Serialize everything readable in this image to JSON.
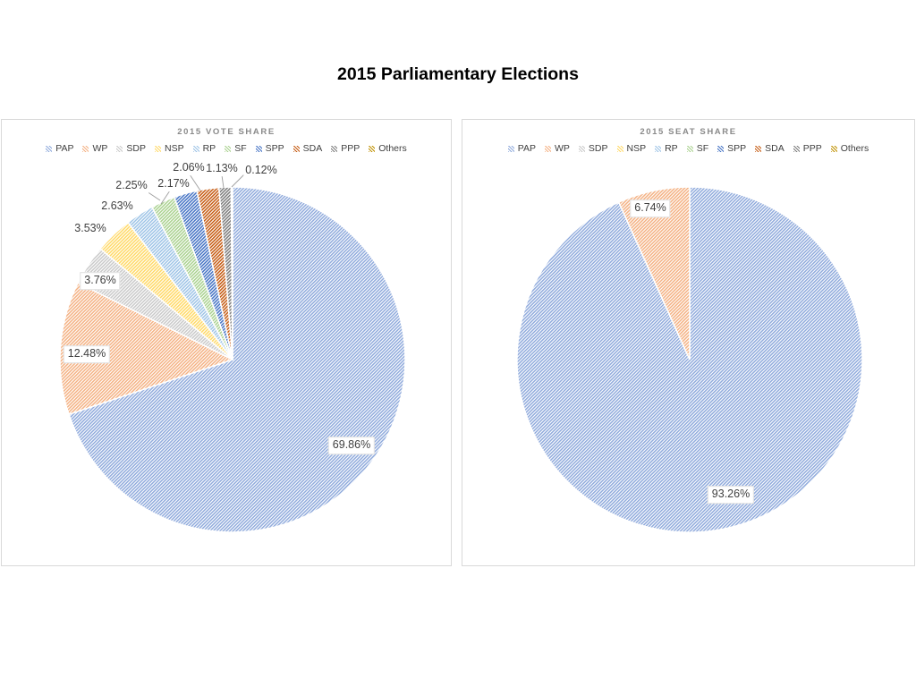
{
  "page": {
    "title": "2015 Parliamentary Elections"
  },
  "legend": {
    "position": "top",
    "items": [
      {
        "label": "PAP",
        "color": "#8FAADC"
      },
      {
        "label": "WP",
        "color": "#F4B183"
      },
      {
        "label": "SDP",
        "color": "#C9C9C9"
      },
      {
        "label": "NSP",
        "color": "#FFD966"
      },
      {
        "label": "RP",
        "color": "#9DC3E6"
      },
      {
        "label": "SF",
        "color": "#A9D18E"
      },
      {
        "label": "SPP",
        "color": "#4472C4"
      },
      {
        "label": "SDA",
        "color": "#C55A11"
      },
      {
        "label": "PPP",
        "color": "#7B7B7B"
      },
      {
        "label": "Others",
        "color": "#BF9000"
      }
    ]
  },
  "chart_data": [
    {
      "type": "pie",
      "title": "2015 VOTE SHARE",
      "categories": [
        "PAP",
        "WP",
        "SDP",
        "NSP",
        "RP",
        "SF",
        "SPP",
        "SDA",
        "PPP",
        "Others"
      ],
      "values": [
        69.86,
        12.48,
        3.76,
        3.53,
        2.63,
        2.25,
        2.17,
        2.06,
        1.13,
        0.12
      ],
      "labels": [
        "69.86%",
        "12.48%",
        "3.76%",
        "3.53%",
        "2.63%",
        "2.25%",
        "2.17%",
        "2.06%",
        "1.13%",
        "0.12%"
      ],
      "start_angle": 0,
      "direction": "clockwise",
      "legend_position": "top",
      "fill_style": "diagonal-pattern"
    },
    {
      "type": "pie",
      "title": "2015 SEAT SHARE",
      "categories": [
        "PAP",
        "WP",
        "SDP",
        "NSP",
        "RP",
        "SF",
        "SPP",
        "SDA",
        "PPP",
        "Others"
      ],
      "values": [
        93.26,
        6.74,
        0,
        0,
        0,
        0,
        0,
        0,
        0,
        0
      ],
      "labels": [
        "93.26%",
        "6.74%",
        "",
        "",
        "",
        "",
        "",
        "",
        "",
        ""
      ],
      "start_angle": 0,
      "direction": "clockwise",
      "legend_position": "top",
      "fill_style": "diagonal-pattern"
    }
  ]
}
